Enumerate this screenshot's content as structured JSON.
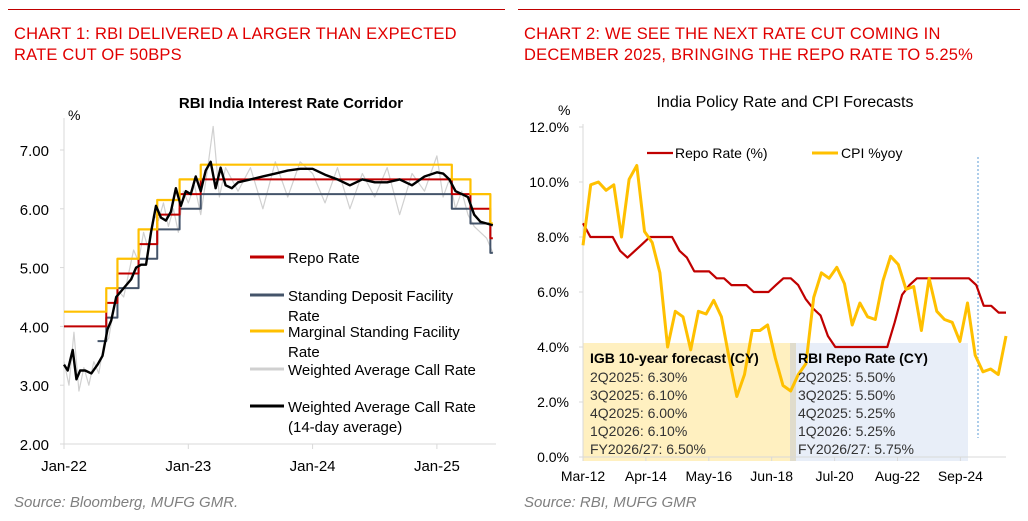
{
  "left_panel": {
    "heading": "CHART 1: RBI DELIVERED A LARGER THAN EXPECTED RATE CUT OF 50BPS",
    "heading_lines": [
      "CHART 1: RBI DELIVERED A LARGER THAN EXPECTED",
      "RATE CUT OF 50BPS"
    ],
    "source": "Source: Bloomberg, MUFG GMR."
  },
  "right_panel": {
    "heading": "CHART 2: WE SEE THE NEXT RATE CUT COMING IN DECEMBER 2025, BRINGING THE REPO RATE TO 5.25%",
    "heading_lines": [
      "CHART 2: WE SEE THE NEXT RATE CUT COMING IN",
      "DECEMBER 2025, BRINGING THE REPO RATE TO 5.25%"
    ],
    "source": "Source: RBI, MUFG GMR"
  },
  "chart_data": [
    {
      "type": "line",
      "title": "RBI India Interest Rate Corridor",
      "ylabel": "%",
      "ylim": [
        2.0,
        7.5
      ],
      "yticks": [
        "2.00",
        "3.00",
        "4.00",
        "5.00",
        "6.00",
        "7.00"
      ],
      "ytick_values": [
        2,
        3,
        4,
        5,
        6,
        7
      ],
      "xticks": [
        "Jan-22",
        "Jan-23",
        "Jan-24",
        "Jan-25"
      ],
      "xtick_values": [
        2022.0,
        2023.0,
        2024.0,
        2025.0
      ],
      "xlim": [
        2022.0,
        2025.45
      ],
      "legend_position": "bottom-right",
      "colors": {
        "repo": "#c00000",
        "sdf": "#44546a",
        "msf": "#ffc000",
        "wacr": "#d0d0d0",
        "wacr14": "#000000"
      },
      "series": [
        {
          "key": "repo",
          "name": "Repo Rate",
          "step": true,
          "x": [
            2022.0,
            2022.34,
            2022.43,
            2022.6,
            2022.75,
            2022.93,
            2023.1,
            2025.12,
            2025.27,
            2025.43,
            2025.45
          ],
          "y": [
            4.0,
            4.4,
            4.9,
            5.4,
            5.9,
            6.25,
            6.5,
            6.25,
            6.0,
            5.5,
            5.5
          ]
        },
        {
          "key": "sdf",
          "name": "Standing Deposit Facility Rate",
          "step": true,
          "x": [
            2022.27,
            2022.34,
            2022.43,
            2022.6,
            2022.75,
            2022.93,
            2023.1,
            2025.12,
            2025.27,
            2025.43,
            2025.45
          ],
          "y": [
            3.75,
            4.15,
            4.65,
            5.15,
            5.65,
            6.0,
            6.25,
            6.0,
            5.75,
            5.25,
            5.25
          ]
        },
        {
          "key": "msf",
          "name": "Marginal Standing Facility Rate",
          "step": true,
          "x": [
            2022.0,
            2022.34,
            2022.43,
            2022.6,
            2022.75,
            2022.93,
            2023.1,
            2025.12,
            2025.27,
            2025.43,
            2025.45
          ],
          "y": [
            4.25,
            4.65,
            5.15,
            5.65,
            6.15,
            6.5,
            6.75,
            6.5,
            6.25,
            5.75,
            5.75
          ]
        },
        {
          "key": "wacr",
          "name": "Weighted Average Call Rate",
          "x": [
            2022.0,
            2022.04,
            2022.08,
            2022.12,
            2022.16,
            2022.2,
            2022.24,
            2022.28,
            2022.32,
            2022.36,
            2022.4,
            2022.44,
            2022.48,
            2022.52,
            2022.56,
            2022.6,
            2022.64,
            2022.68,
            2022.72,
            2022.76,
            2022.8,
            2022.84,
            2022.88,
            2022.92,
            2022.96,
            2023.0,
            2023.05,
            2023.1,
            2023.15,
            2023.2,
            2023.25,
            2023.3,
            2023.4,
            2023.5,
            2023.6,
            2023.7,
            2023.8,
            2023.9,
            2024.0,
            2024.1,
            2024.2,
            2024.3,
            2024.4,
            2024.5,
            2024.6,
            2024.7,
            2024.8,
            2024.9,
            2025.0,
            2025.05,
            2025.1,
            2025.15,
            2025.2,
            2025.25,
            2025.3,
            2025.35,
            2025.4,
            2025.45
          ],
          "y": [
            3.4,
            3.0,
            3.9,
            2.9,
            3.3,
            3.0,
            3.4,
            3.2,
            3.7,
            3.8,
            4.3,
            4.6,
            4.5,
            4.9,
            5.3,
            5.1,
            5.6,
            5.3,
            5.9,
            5.8,
            6.1,
            5.7,
            6.0,
            5.6,
            6.3,
            6.1,
            6.4,
            5.9,
            6.6,
            7.4,
            6.2,
            6.7,
            6.3,
            6.7,
            6.0,
            6.8,
            6.2,
            6.8,
            6.6,
            6.1,
            6.7,
            6.0,
            6.6,
            6.2,
            6.7,
            5.9,
            6.6,
            6.3,
            6.9,
            6.2,
            6.5,
            6.0,
            6.3,
            5.9,
            5.7,
            5.6,
            5.5,
            5.25
          ]
        },
        {
          "key": "wacr14",
          "name": "Weighted Average Call Rate (14-day average)",
          "x": [
            2022.0,
            2022.03,
            2022.07,
            2022.1,
            2022.13,
            2022.17,
            2022.22,
            2022.27,
            2022.31,
            2022.35,
            2022.38,
            2022.42,
            2022.46,
            2022.5,
            2022.54,
            2022.58,
            2022.62,
            2022.66,
            2022.7,
            2022.74,
            2022.78,
            2022.82,
            2022.86,
            2022.9,
            2022.94,
            2022.98,
            2023.02,
            2023.06,
            2023.1,
            2023.14,
            2023.18,
            2023.22,
            2023.26,
            2023.3,
            2023.35,
            2023.4,
            2023.5,
            2023.6,
            2023.7,
            2023.8,
            2023.9,
            2024.0,
            2024.1,
            2024.2,
            2024.3,
            2024.4,
            2024.5,
            2024.6,
            2024.7,
            2024.8,
            2024.9,
            2025.0,
            2025.05,
            2025.1,
            2025.15,
            2025.2,
            2025.25,
            2025.3,
            2025.35,
            2025.45
          ],
          "y": [
            3.35,
            3.25,
            3.6,
            3.1,
            3.25,
            3.25,
            3.2,
            3.35,
            3.5,
            3.95,
            4.1,
            4.5,
            4.6,
            4.7,
            4.8,
            5.0,
            5.05,
            5.05,
            5.6,
            6.05,
            5.85,
            5.8,
            5.95,
            6.35,
            6.05,
            6.3,
            6.25,
            6.55,
            6.3,
            6.65,
            6.8,
            6.35,
            6.7,
            6.4,
            6.35,
            6.45,
            6.5,
            6.55,
            6.6,
            6.65,
            6.68,
            6.68,
            6.58,
            6.5,
            6.4,
            6.5,
            6.45,
            6.45,
            6.5,
            6.4,
            6.55,
            6.62,
            6.6,
            6.5,
            6.3,
            6.25,
            6.2,
            5.9,
            5.78,
            5.72
          ]
        }
      ],
      "legend": [
        {
          "key": "repo",
          "lines": [
            "Repo Rate"
          ]
        },
        {
          "key": "sdf",
          "lines": [
            "Standing Deposit Facility",
            "Rate"
          ]
        },
        {
          "key": "msf",
          "lines": [
            "Marginal Standing Facility",
            "Rate"
          ]
        },
        {
          "key": "wacr",
          "lines": [
            "Weighted Average Call Rate"
          ]
        },
        {
          "key": "wacr14",
          "lines": [
            "Weighted Average Call Rate",
            "(14-day average)"
          ]
        }
      ]
    },
    {
      "type": "line",
      "title": "India Policy Rate and CPI Forecasts",
      "ylabel": "%",
      "ylim": [
        0,
        12
      ],
      "yticks": [
        "0.0%",
        "2.0%",
        "4.0%",
        "6.0%",
        "8.0%",
        "10.0%",
        "12.0%"
      ],
      "ytick_values": [
        0,
        2,
        4,
        6,
        8,
        10,
        12
      ],
      "xticks": [
        "Mar-12",
        "Apr-14",
        "May-16",
        "Jun-18",
        "Jul-20",
        "Aug-22",
        "Sep-24"
      ],
      "x_frequency": "quarterly, starting Mar-12",
      "legend_position": "top",
      "colors": {
        "repo": "#c00000",
        "cpi": "#ffc000",
        "igb_box": "#fff0c0",
        "repo_box": "#e8eef8",
        "forecast_line": "#5b9bd5"
      },
      "series": [
        {
          "key": "repo",
          "name": "Repo Rate (%)",
          "values": [
            8.5,
            8.0,
            8.0,
            8.0,
            8.0,
            7.5,
            7.25,
            7.5,
            7.75,
            8.0,
            8.0,
            8.0,
            8.0,
            7.5,
            7.25,
            6.75,
            6.75,
            6.75,
            6.5,
            6.5,
            6.25,
            6.25,
            6.25,
            6.0,
            6.0,
            6.0,
            6.25,
            6.5,
            6.5,
            6.25,
            5.75,
            5.4,
            5.15,
            4.4,
            4.0,
            4.0,
            4.0,
            4.0,
            4.0,
            4.0,
            4.0,
            4.0,
            4.9,
            5.9,
            6.25,
            6.5,
            6.5,
            6.5,
            6.5,
            6.5,
            6.5,
            6.5,
            6.5,
            6.25,
            5.5,
            5.5,
            5.25,
            5.25
          ]
        },
        {
          "key": "cpi",
          "name": "CPI %yoy",
          "values": [
            7.7,
            9.9,
            10.0,
            9.7,
            9.9,
            8.0,
            10.1,
            10.6,
            8.2,
            7.8,
            6.7,
            4.0,
            5.3,
            5.1,
            3.9,
            5.3,
            5.2,
            5.7,
            5.1,
            3.6,
            2.2,
            3.0,
            4.6,
            4.6,
            4.8,
            3.6,
            2.6,
            2.4,
            3.0,
            3.4,
            5.8,
            6.7,
            6.5,
            6.9,
            6.3,
            4.8,
            5.6,
            5.1,
            5.0,
            6.4,
            7.3,
            7.0,
            6.1,
            6.2,
            4.6,
            6.5,
            5.3,
            5.0,
            4.9,
            4.2,
            5.6,
            3.7,
            3.1,
            3.2,
            3.0,
            4.4
          ]
        }
      ],
      "annotations": [
        {
          "key": "igb_box",
          "title": "IGB 10-year forecast (CY)",
          "rows": [
            "2Q2025: 6.30%",
            "3Q2025: 6.10%",
            "4Q2025: 6.00%",
            "1Q2026: 6.10%",
            "FY2026/27: 6.50%"
          ]
        },
        {
          "key": "repo_box",
          "title": "RBI Repo Rate (CY)",
          "rows": [
            "2Q2025: 5.50%",
            "3Q2025: 5.50%",
            "4Q2025: 5.25%",
            "1Q2026: 5.25%",
            "FY2026/27: 5.75%"
          ]
        }
      ]
    }
  ]
}
